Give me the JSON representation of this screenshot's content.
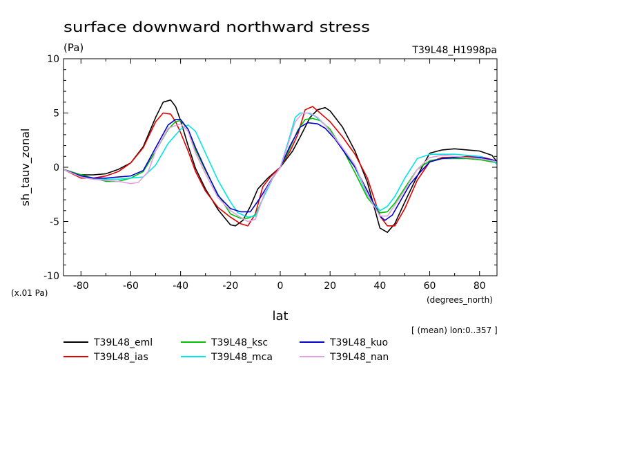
{
  "chart_data": {
    "type": "line",
    "title": "surface downward northward stress",
    "units": "(Pa)",
    "experiment": "T39L48_H1998pa",
    "ylabel": "sh_tauv_zonal",
    "xlabel": "lat",
    "x_units": "(degrees_north)",
    "y_scale_note": "(x.01 Pa)",
    "subset_note": "[ (mean) lon:0..357 ]",
    "xlim": [
      -87,
      87
    ],
    "ylim": [
      -10,
      10
    ],
    "x_ticks": [
      -80,
      -60,
      -40,
      -20,
      0,
      20,
      40,
      60,
      80
    ],
    "x_tick_labels": [
      "-80",
      "-60",
      "-40",
      "-20",
      "0",
      "20",
      "40",
      "60",
      "80"
    ],
    "y_ticks": [
      -10,
      -5,
      0,
      5,
      10
    ],
    "y_tick_labels": [
      "-10",
      "-5",
      "0",
      "5",
      "10"
    ],
    "legend_placement": "bottom",
    "series": [
      {
        "name": "T39L48_eml",
        "color": "#000000",
        "x": [
          -87,
          -80,
          -75,
          -70,
          -65,
          -60,
          -55,
          -50,
          -47,
          -44,
          -42,
          -40,
          -37,
          -34,
          -30,
          -25,
          -20,
          -18,
          -15,
          -12,
          -9,
          -5,
          0,
          5,
          8,
          12,
          15,
          18,
          20,
          25,
          30,
          35,
          40,
          43,
          46,
          50,
          55,
          60,
          65,
          70,
          75,
          80,
          85,
          87
        ],
        "y": [
          -0.2,
          -0.7,
          -0.7,
          -0.6,
          -0.2,
          0.4,
          1.9,
          4.6,
          6.0,
          6.2,
          5.6,
          4.3,
          2.0,
          -0.1,
          -2.0,
          -3.9,
          -5.3,
          -5.4,
          -4.9,
          -3.6,
          -2.0,
          -1.0,
          0.0,
          1.5,
          2.8,
          4.6,
          5.3,
          5.5,
          5.2,
          3.7,
          1.5,
          -1.4,
          -5.6,
          -6.0,
          -5.2,
          -3.2,
          -0.8,
          1.3,
          1.6,
          1.7,
          1.6,
          1.5,
          1.1,
          0.5
        ]
      },
      {
        "name": "T39L48_ias",
        "color": "#e00000",
        "x": [
          -87,
          -80,
          -75,
          -70,
          -65,
          -60,
          -55,
          -50,
          -47,
          -44,
          -42,
          -40,
          -37,
          -34,
          -30,
          -25,
          -20,
          -16,
          -13,
          -10,
          -7,
          -4,
          0,
          4,
          7,
          10,
          13,
          15,
          18,
          20,
          25,
          30,
          35,
          40,
          43,
          46,
          50,
          55,
          60,
          65,
          70,
          75,
          80,
          85,
          87
        ],
        "y": [
          -0.2,
          -1.0,
          -1.0,
          -0.8,
          -0.4,
          0.4,
          1.8,
          4.2,
          5.0,
          4.9,
          4.2,
          3.2,
          1.5,
          -0.4,
          -2.2,
          -3.7,
          -4.6,
          -5.2,
          -5.4,
          -4.3,
          -1.8,
          -0.9,
          0.0,
          1.5,
          3.0,
          5.3,
          5.6,
          5.2,
          4.6,
          4.2,
          2.8,
          1.2,
          -1.0,
          -4.5,
          -5.4,
          -5.4,
          -3.8,
          -1.2,
          0.5,
          0.9,
          0.9,
          1.0,
          1.0,
          0.7,
          0.4
        ]
      },
      {
        "name": "T39L48_ksc",
        "color": "#00c000",
        "x": [
          -87,
          -80,
          -75,
          -70,
          -65,
          -60,
          -55,
          -50,
          -45,
          -42,
          -40,
          -37,
          -34,
          -30,
          -25,
          -20,
          -16,
          -13,
          -10,
          -6,
          -3,
          0,
          3,
          7,
          10,
          13,
          16,
          20,
          25,
          30,
          35,
          40,
          43,
          46,
          50,
          55,
          60,
          65,
          70,
          75,
          80,
          85,
          87
        ],
        "y": [
          -0.2,
          -0.7,
          -1.0,
          -1.3,
          -1.3,
          -1.0,
          -0.4,
          1.5,
          3.5,
          4.2,
          4.3,
          3.5,
          1.6,
          -0.3,
          -2.5,
          -4.3,
          -4.7,
          -4.7,
          -4.4,
          -2.4,
          -1.0,
          0.0,
          1.3,
          3.4,
          4.4,
          4.5,
          4.3,
          3.5,
          1.7,
          -0.5,
          -2.8,
          -4.2,
          -4.1,
          -3.3,
          -1.9,
          -0.2,
          0.6,
          0.8,
          0.8,
          0.8,
          0.7,
          0.5,
          0.4
        ]
      },
      {
        "name": "T39L48_mca",
        "color": "#00e6e6",
        "x": [
          -87,
          -80,
          -75,
          -70,
          -65,
          -60,
          -55,
          -50,
          -45,
          -40,
          -37,
          -34,
          -30,
          -25,
          -20,
          -17,
          -13,
          -10,
          -6,
          -3,
          0,
          3,
          6,
          8,
          11,
          14,
          18,
          22,
          25,
          30,
          35,
          40,
          43,
          46,
          50,
          55,
          60,
          65,
          70,
          75,
          80,
          85,
          87
        ],
        "y": [
          -0.2,
          -0.9,
          -1.1,
          -1.1,
          -1.1,
          -1.0,
          -0.9,
          0.2,
          2.2,
          3.5,
          3.9,
          3.3,
          1.3,
          -1.2,
          -3.2,
          -4.2,
          -4.6,
          -4.5,
          -2.4,
          -1.0,
          0.0,
          2.2,
          4.6,
          5.0,
          5.0,
          4.7,
          3.9,
          2.7,
          1.8,
          0.0,
          -2.6,
          -4.0,
          -3.6,
          -2.7,
          -1.0,
          0.8,
          1.2,
          1.2,
          1.2,
          1.1,
          1.0,
          0.6,
          0.3
        ]
      },
      {
        "name": "T39L48_kuo",
        "color": "#0000cc",
        "x": [
          -87,
          -80,
          -75,
          -70,
          -65,
          -60,
          -55,
          -50,
          -45,
          -42,
          -40,
          -37,
          -34,
          -30,
          -25,
          -20,
          -16,
          -12,
          -8,
          -4,
          0,
          4,
          8,
          11,
          15,
          18,
          22,
          26,
          30,
          35,
          40,
          42,
          45,
          48,
          52,
          56,
          60,
          65,
          70,
          75,
          80,
          85,
          87
        ],
        "y": [
          -0.2,
          -0.8,
          -1.0,
          -1.0,
          -0.9,
          -0.8,
          -0.3,
          1.8,
          3.9,
          4.4,
          4.4,
          3.5,
          1.8,
          -0.2,
          -2.6,
          -3.8,
          -4.1,
          -4.1,
          -2.8,
          -1.3,
          0.0,
          2.0,
          3.7,
          4.1,
          4.0,
          3.6,
          2.6,
          1.3,
          0.0,
          -2.2,
          -4.5,
          -4.9,
          -4.4,
          -3.2,
          -1.6,
          -0.5,
          0.5,
          0.8,
          0.9,
          0.9,
          0.9,
          0.7,
          0.5
        ]
      },
      {
        "name": "T39L48_nan",
        "color": "#e0a0e0",
        "x": [
          -87,
          -80,
          -75,
          -70,
          -65,
          -60,
          -57,
          -53,
          -50,
          -45,
          -40,
          -37,
          -34,
          -30,
          -25,
          -20,
          -16,
          -13,
          -10,
          -6,
          -3,
          0,
          3,
          6,
          9,
          12,
          15,
          18,
          22,
          26,
          30,
          35,
          40,
          43,
          46,
          50,
          55,
          60,
          65,
          70,
          75,
          80,
          85,
          87
        ],
        "y": [
          -0.2,
          -0.9,
          -1.1,
          -1.2,
          -1.3,
          -1.5,
          -1.4,
          -0.4,
          1.5,
          3.6,
          4.0,
          3.3,
          1.3,
          -0.6,
          -2.8,
          -4.0,
          -4.6,
          -5.0,
          -4.8,
          -2.2,
          -1.0,
          0.0,
          2.0,
          4.2,
          5.0,
          5.0,
          4.6,
          3.9,
          2.7,
          1.5,
          0.2,
          -2.5,
          -4.5,
          -4.5,
          -3.5,
          -2.1,
          -0.2,
          0.9,
          1.1,
          1.0,
          0.9,
          0.8,
          0.6,
          0.5
        ]
      }
    ]
  }
}
